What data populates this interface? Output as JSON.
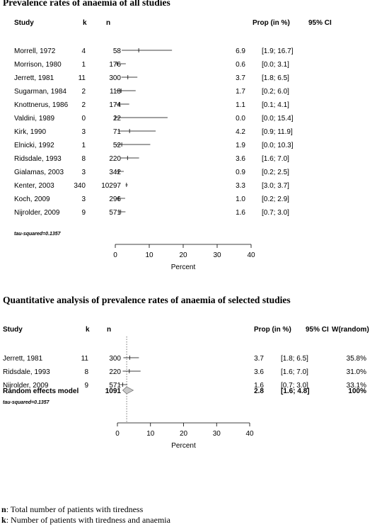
{
  "chart_data": [
    {
      "type": "forest",
      "title": "Prevalence rates of anaemia of all studies",
      "columns": {
        "study": "Study",
        "k": "k",
        "n": "n",
        "prop": "Prop (in %)",
        "ci": "95% CI"
      },
      "rows": [
        {
          "study": "Morrell, 1972",
          "k": "4",
          "n": "58",
          "prop": 6.9,
          "lo": 1.9,
          "hi": 16.7,
          "prop_text": "6.9",
          "ci_text": "[1.9; 16.7]"
        },
        {
          "study": "Morrison, 1980",
          "k": "1",
          "n": "176",
          "prop": 0.6,
          "lo": 0.0,
          "hi": 3.1,
          "prop_text": "0.6",
          "ci_text": "[0.0;  3.1]"
        },
        {
          "study": "Jerrett, 1981",
          "k": "11",
          "n": "300",
          "prop": 3.7,
          "lo": 1.8,
          "hi": 6.5,
          "prop_text": "3.7",
          "ci_text": "[1.8;  6.5]"
        },
        {
          "study": "Sugarman, 1984",
          "k": "2",
          "n": "118",
          "prop": 1.7,
          "lo": 0.2,
          "hi": 6.0,
          "prop_text": "1.7",
          "ci_text": "[0.2;  6.0]"
        },
        {
          "study": "Knottnerus, 1986",
          "k": "2",
          "n": "174",
          "prop": 1.1,
          "lo": 0.1,
          "hi": 4.1,
          "prop_text": "1.1",
          "ci_text": "[0.1;  4.1]"
        },
        {
          "study": "Valdini, 1989",
          "k": "0",
          "n": "22",
          "prop": 0.0,
          "lo": 0.0,
          "hi": 15.4,
          "prop_text": "0.0",
          "ci_text": "[0.0; 15.4]"
        },
        {
          "study": "Kirk, 1990",
          "k": "3",
          "n": "71",
          "prop": 4.2,
          "lo": 0.9,
          "hi": 11.9,
          "prop_text": "4.2",
          "ci_text": "[0.9; 11.9]"
        },
        {
          "study": "Elnicki, 1992",
          "k": "1",
          "n": "52",
          "prop": 1.9,
          "lo": 0.0,
          "hi": 10.3,
          "prop_text": "1.9",
          "ci_text": "[0.0; 10.3]"
        },
        {
          "study": "Ridsdale, 1993",
          "k": "8",
          "n": "220",
          "prop": 3.6,
          "lo": 1.6,
          "hi": 7.0,
          "prop_text": "3.6",
          "ci_text": "[1.6;  7.0]"
        },
        {
          "study": "Gialamas, 2003",
          "k": "3",
          "n": "342",
          "prop": 0.9,
          "lo": 0.2,
          "hi": 2.5,
          "prop_text": "0.9",
          "ci_text": "[0.2;  2.5]"
        },
        {
          "study": "Kenter, 2003",
          "k": "340",
          "n": "10297",
          "prop": 3.3,
          "lo": 3.0,
          "hi": 3.7,
          "prop_text": "3.3",
          "ci_text": "[3.0;  3.7]"
        },
        {
          "study": "Koch, 2009",
          "k": "3",
          "n": "296",
          "prop": 1.0,
          "lo": 0.2,
          "hi": 2.9,
          "prop_text": "1.0",
          "ci_text": "[0.2;  2.9]"
        },
        {
          "study": "Nijrolder, 2009",
          "k": "9",
          "n": "571",
          "prop": 1.6,
          "lo": 0.7,
          "hi": 3.0,
          "prop_text": "1.6",
          "ci_text": "[0.7;  3.0]"
        }
      ],
      "note": "tau-squared=0.1357",
      "xlim": [
        0,
        40
      ],
      "xticks": [
        0,
        10,
        20,
        30,
        40
      ],
      "xlabel": "Percent"
    },
    {
      "type": "forest",
      "title": "Quantitative analysis of prevalence rates of anaemia of selected studies",
      "columns": {
        "study": "Study",
        "k": "k",
        "n": "n",
        "prop": "Prop (in %)",
        "ci": "95% CI",
        "weight": "W(random)"
      },
      "rows": [
        {
          "study": "Jerrett, 1981",
          "k": "11",
          "n": "300",
          "prop": 3.7,
          "lo": 1.8,
          "hi": 6.5,
          "prop_text": "3.7",
          "ci_text": "[1.8; 6.5]",
          "weight": "35.8%"
        },
        {
          "study": "Ridsdale, 1993",
          "k": "8",
          "n": "220",
          "prop": 3.6,
          "lo": 1.6,
          "hi": 7.0,
          "prop_text": "3.6",
          "ci_text": "[1.6; 7.0]",
          "weight": "31.0%"
        },
        {
          "study": "Nijrolder, 2009",
          "k": "9",
          "n": "571",
          "prop": 1.6,
          "lo": 0.7,
          "hi": 3.0,
          "prop_text": "1.6",
          "ci_text": "[0.7; 3.0]",
          "weight": "33.1%"
        }
      ],
      "summary": {
        "label": "Random effects model",
        "n": "1091",
        "prop": 2.8,
        "lo": 1.6,
        "hi": 4.8,
        "prop_text": "2.8",
        "ci_text": "[1.6; 4.8]",
        "weight": "100%"
      },
      "note": "tau-squared=0.1357",
      "xlim": [
        0,
        40
      ],
      "xticks": [
        0,
        10,
        20,
        30,
        40
      ],
      "xlabel": "Percent"
    }
  ],
  "footnotes": [
    {
      "key": "n",
      "text": ": Total number of patients with tiredness"
    },
    {
      "key": "k",
      "text": ": Number of patients with tiredness and anaemia"
    }
  ]
}
